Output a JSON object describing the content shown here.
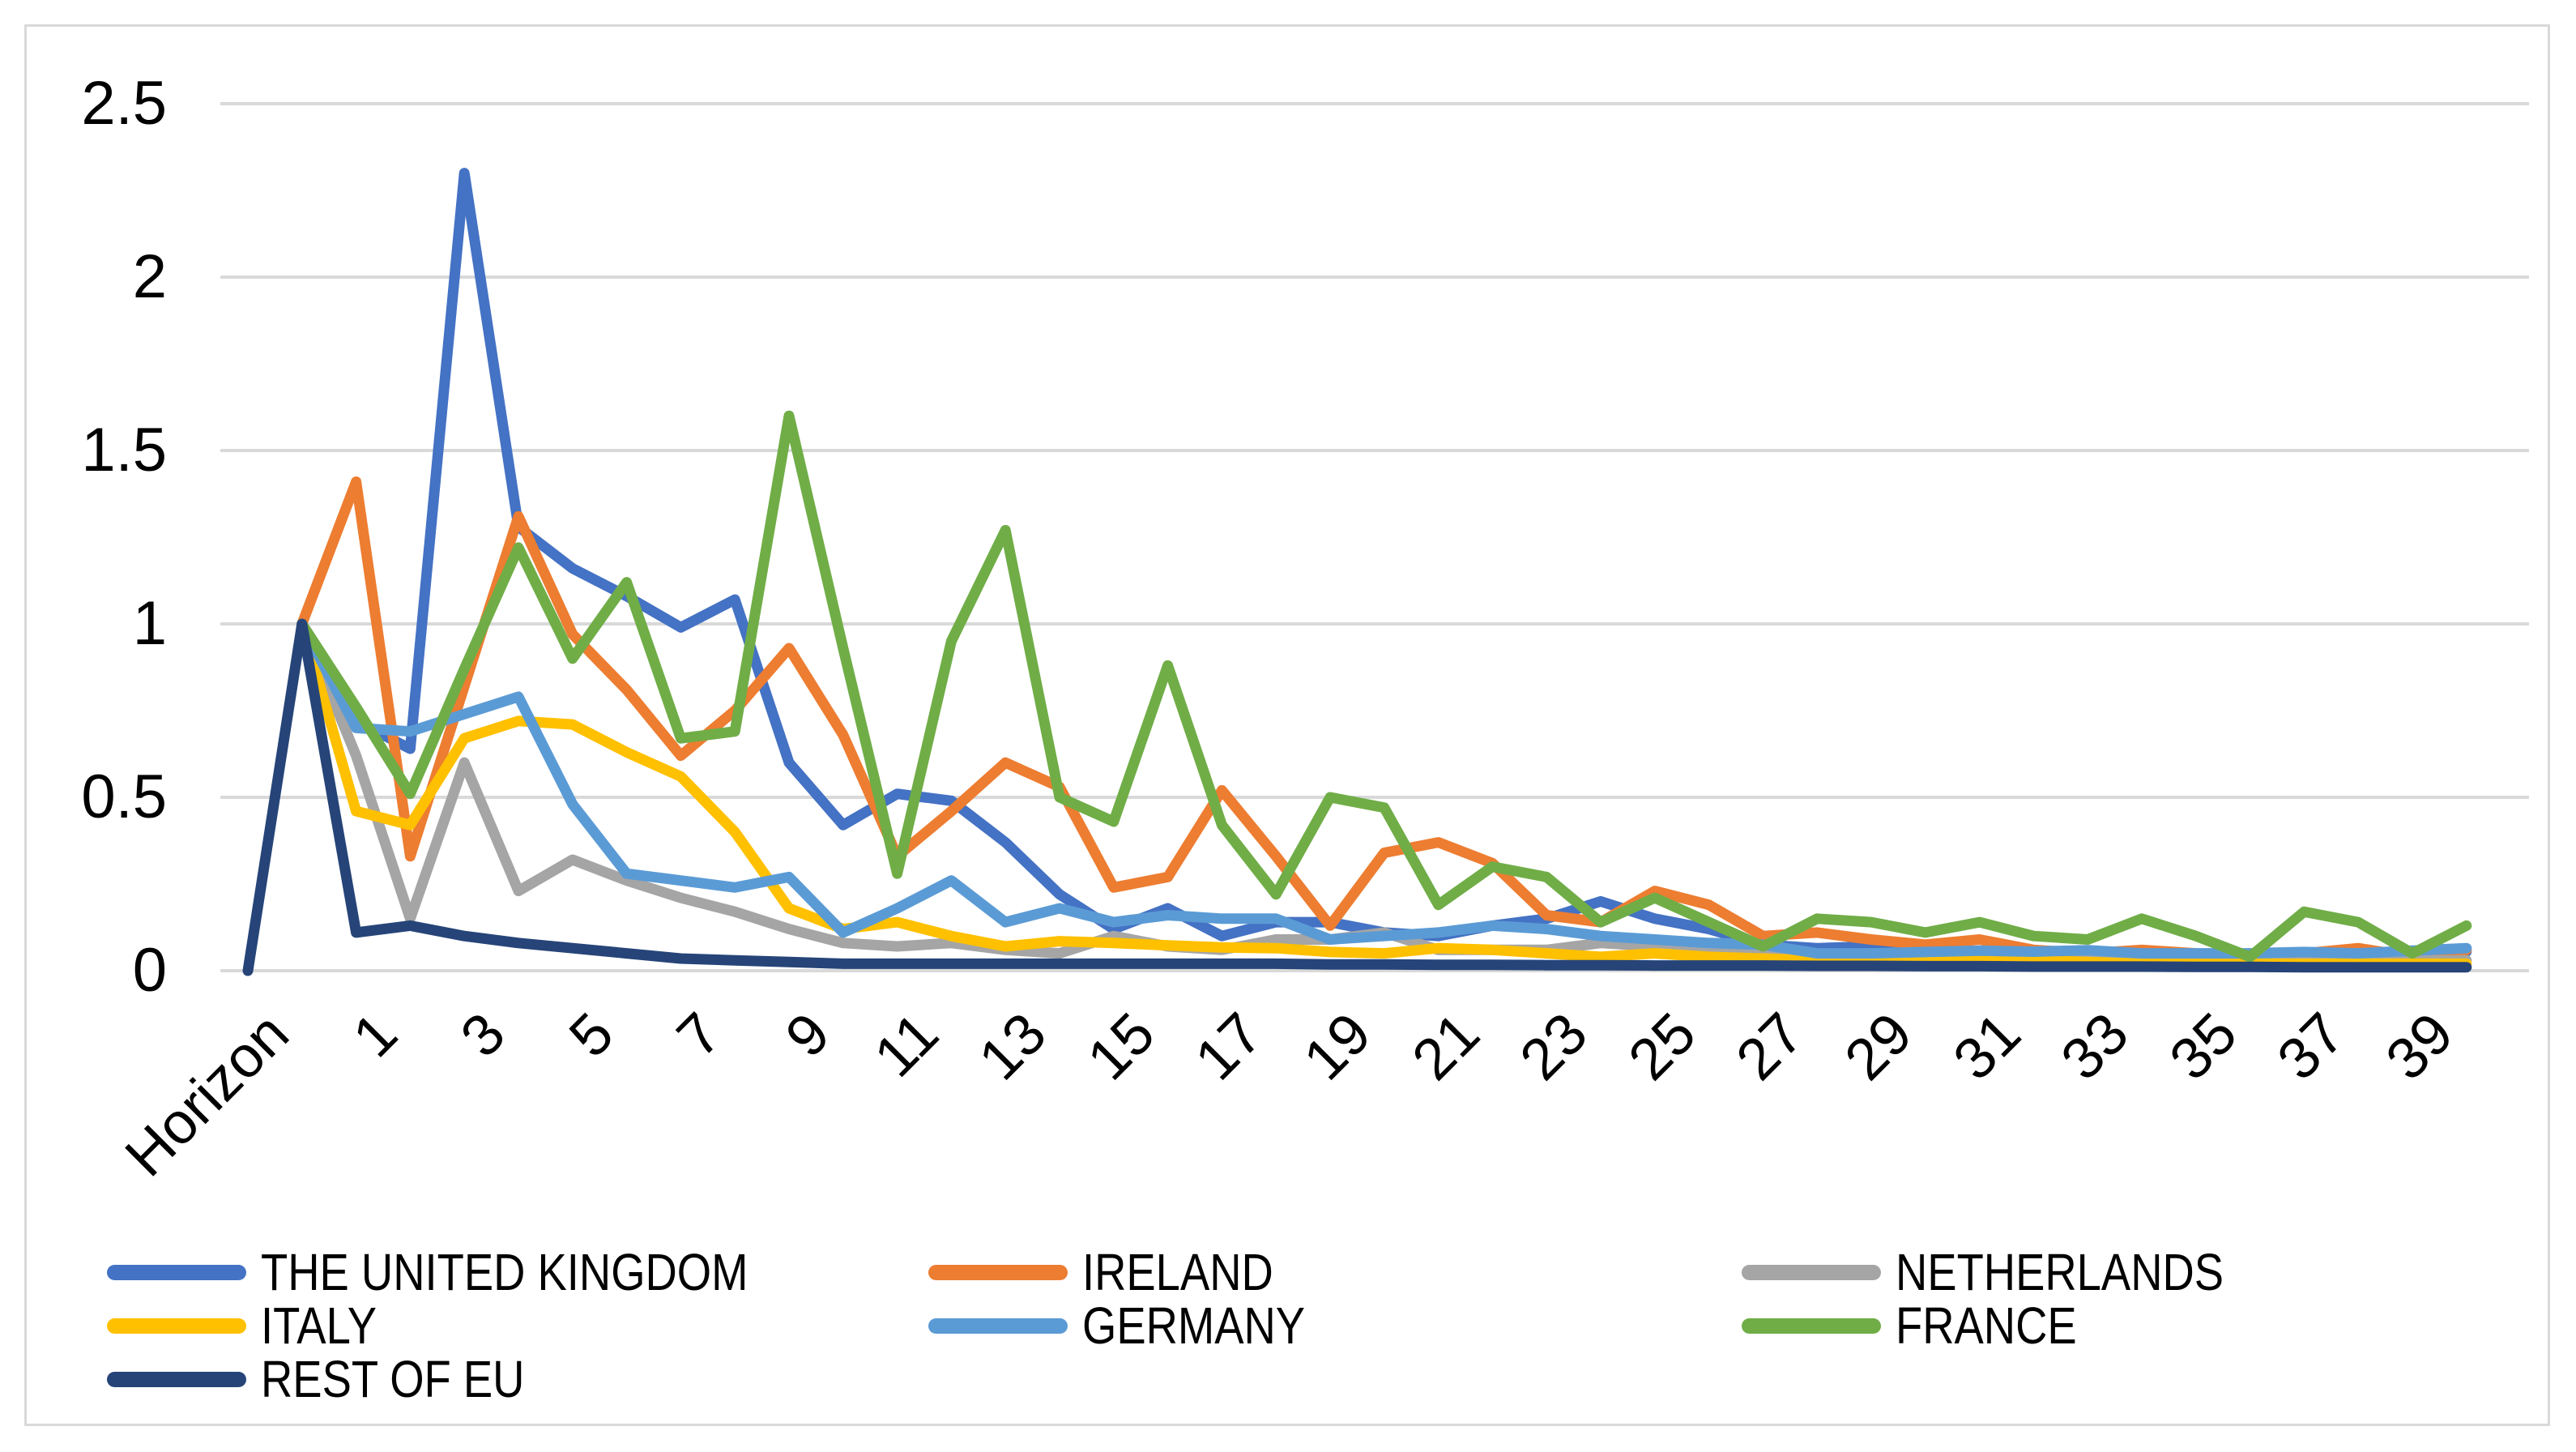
{
  "chart_data": {
    "type": "line",
    "title": "",
    "xlabel": "",
    "ylabel": "",
    "x_axis": {
      "first_category_label": "Horizon",
      "tick_interval": 2,
      "visible_tick_labels": [
        "Horizon",
        "1",
        "3",
        "5",
        "7",
        "9",
        "11",
        "13",
        "15",
        "17",
        "19",
        "21",
        "23",
        "25",
        "27",
        "29",
        "31",
        "33",
        "35",
        "37",
        "39"
      ]
    },
    "y_axis": {
      "tick_labels": [
        "0",
        "0.5",
        "1",
        "1.5",
        "2",
        "2.5"
      ],
      "tick_values": [
        0,
        0.5,
        1,
        1.5,
        2,
        2.5
      ],
      "range": [
        0,
        2.5
      ],
      "gridlines": true
    },
    "categories": [
      "Horizon",
      "0",
      "1",
      "2",
      "3",
      "4",
      "5",
      "6",
      "7",
      "8",
      "9",
      "10",
      "11",
      "12",
      "13",
      "14",
      "15",
      "16",
      "17",
      "18",
      "19",
      "20",
      "21",
      "22",
      "23",
      "24",
      "25",
      "26",
      "27",
      "28",
      "29",
      "30",
      "31",
      "32",
      "33",
      "34",
      "35",
      "36",
      "37",
      "38",
      "39",
      "40"
    ],
    "series": [
      {
        "name": "THE UNITED KINGDOM",
        "color": "#4472C4",
        "values": [
          null,
          1.0,
          0.72,
          0.64,
          2.3,
          1.28,
          1.16,
          1.08,
          0.99,
          1.07,
          0.6,
          0.42,
          0.51,
          0.49,
          0.37,
          0.22,
          0.12,
          0.18,
          0.1,
          0.14,
          0.14,
          0.11,
          0.1,
          0.13,
          0.15,
          0.2,
          0.15,
          0.12,
          0.075,
          0.065,
          0.07,
          0.06,
          0.055,
          0.05,
          0.05,
          0.05,
          0.045,
          0.04,
          0.045,
          0.04,
          0.04,
          0.055
        ]
      },
      {
        "name": "IRELAND",
        "color": "#ED7D31",
        "values": [
          null,
          1.0,
          1.41,
          0.33,
          0.82,
          1.31,
          0.97,
          0.81,
          0.62,
          0.75,
          0.93,
          0.68,
          0.33,
          0.46,
          0.6,
          0.53,
          0.24,
          0.27,
          0.52,
          0.33,
          0.13,
          0.34,
          0.37,
          0.31,
          0.16,
          0.14,
          0.23,
          0.19,
          0.1,
          0.11,
          0.09,
          0.075,
          0.09,
          0.06,
          0.05,
          0.06,
          0.05,
          0.04,
          0.05,
          0.065,
          0.04,
          0.06
        ]
      },
      {
        "name": "NETHERLANDS",
        "color": "#A5A5A5",
        "values": [
          null,
          1.0,
          0.62,
          0.15,
          0.6,
          0.23,
          0.32,
          0.26,
          0.21,
          0.17,
          0.12,
          0.08,
          0.07,
          0.08,
          0.06,
          0.05,
          0.1,
          0.07,
          0.06,
          0.09,
          0.09,
          0.11,
          0.06,
          0.06,
          0.06,
          0.08,
          0.07,
          0.05,
          0.05,
          0.04,
          0.04,
          0.04,
          0.04,
          0.04,
          0.04,
          0.03,
          0.03,
          0.03,
          0.03,
          0.03,
          0.03,
          0.03
        ]
      },
      {
        "name": "ITALY",
        "color": "#FFC000",
        "values": [
          null,
          1.0,
          0.46,
          0.42,
          0.67,
          0.72,
          0.71,
          0.63,
          0.56,
          0.4,
          0.18,
          0.12,
          0.14,
          0.1,
          0.07,
          0.085,
          0.08,
          0.073,
          0.067,
          0.065,
          0.054,
          0.05,
          0.065,
          0.06,
          0.05,
          0.04,
          0.05,
          0.04,
          0.035,
          0.03,
          0.03,
          0.03,
          0.03,
          0.03,
          0.025,
          0.02,
          0.02,
          0.02,
          0.02,
          0.02,
          0.02,
          0.02
        ]
      },
      {
        "name": "GERMANY",
        "color": "#5B9BD5",
        "values": [
          null,
          1.0,
          0.7,
          0.69,
          0.74,
          0.79,
          0.48,
          0.28,
          0.26,
          0.24,
          0.27,
          0.11,
          0.18,
          0.26,
          0.14,
          0.18,
          0.14,
          0.16,
          0.15,
          0.15,
          0.09,
          0.1,
          0.11,
          0.13,
          0.12,
          0.1,
          0.09,
          0.08,
          0.075,
          0.05,
          0.05,
          0.054,
          0.058,
          0.055,
          0.059,
          0.05,
          0.05,
          0.05,
          0.054,
          0.05,
          0.058,
          0.065
        ]
      },
      {
        "name": "FRANCE",
        "color": "#70AD47",
        "values": [
          null,
          1.0,
          0.76,
          0.51,
          0.87,
          1.22,
          0.9,
          1.12,
          0.67,
          0.69,
          1.6,
          0.93,
          0.28,
          0.95,
          1.27,
          0.5,
          0.43,
          0.88,
          0.42,
          0.22,
          0.5,
          0.47,
          0.19,
          0.3,
          0.27,
          0.14,
          0.21,
          0.14,
          0.07,
          0.15,
          0.14,
          0.11,
          0.14,
          0.1,
          0.09,
          0.15,
          0.1,
          0.04,
          0.17,
          0.14,
          0.05,
          0.13
        ]
      },
      {
        "name": "REST OF EU",
        "color": "#264478",
        "values": [
          0.0,
          1.0,
          0.11,
          0.13,
          0.1,
          0.08,
          0.065,
          0.05,
          0.035,
          0.03,
          0.025,
          0.02,
          0.02,
          0.02,
          0.02,
          0.02,
          0.02,
          0.02,
          0.02,
          0.02,
          0.018,
          0.018,
          0.017,
          0.017,
          0.016,
          0.016,
          0.015,
          0.015,
          0.015,
          0.014,
          0.014,
          0.013,
          0.013,
          0.012,
          0.012,
          0.012,
          0.011,
          0.011,
          0.01,
          0.01,
          0.01,
          0.01
        ]
      }
    ],
    "legend": {
      "position": "bottom",
      "columns": 3,
      "entries": [
        "THE UNITED KINGDOM",
        "IRELAND",
        "NETHERLANDS",
        "ITALY",
        "GERMANY",
        "FRANCE",
        "REST OF EU"
      ]
    },
    "style": {
      "gridline_color": "#D9D9D9",
      "border_color": "#D9D9D9",
      "background_color": "#FFFFFF",
      "axis_text_color": "#000000",
      "line_width": 13
    }
  }
}
